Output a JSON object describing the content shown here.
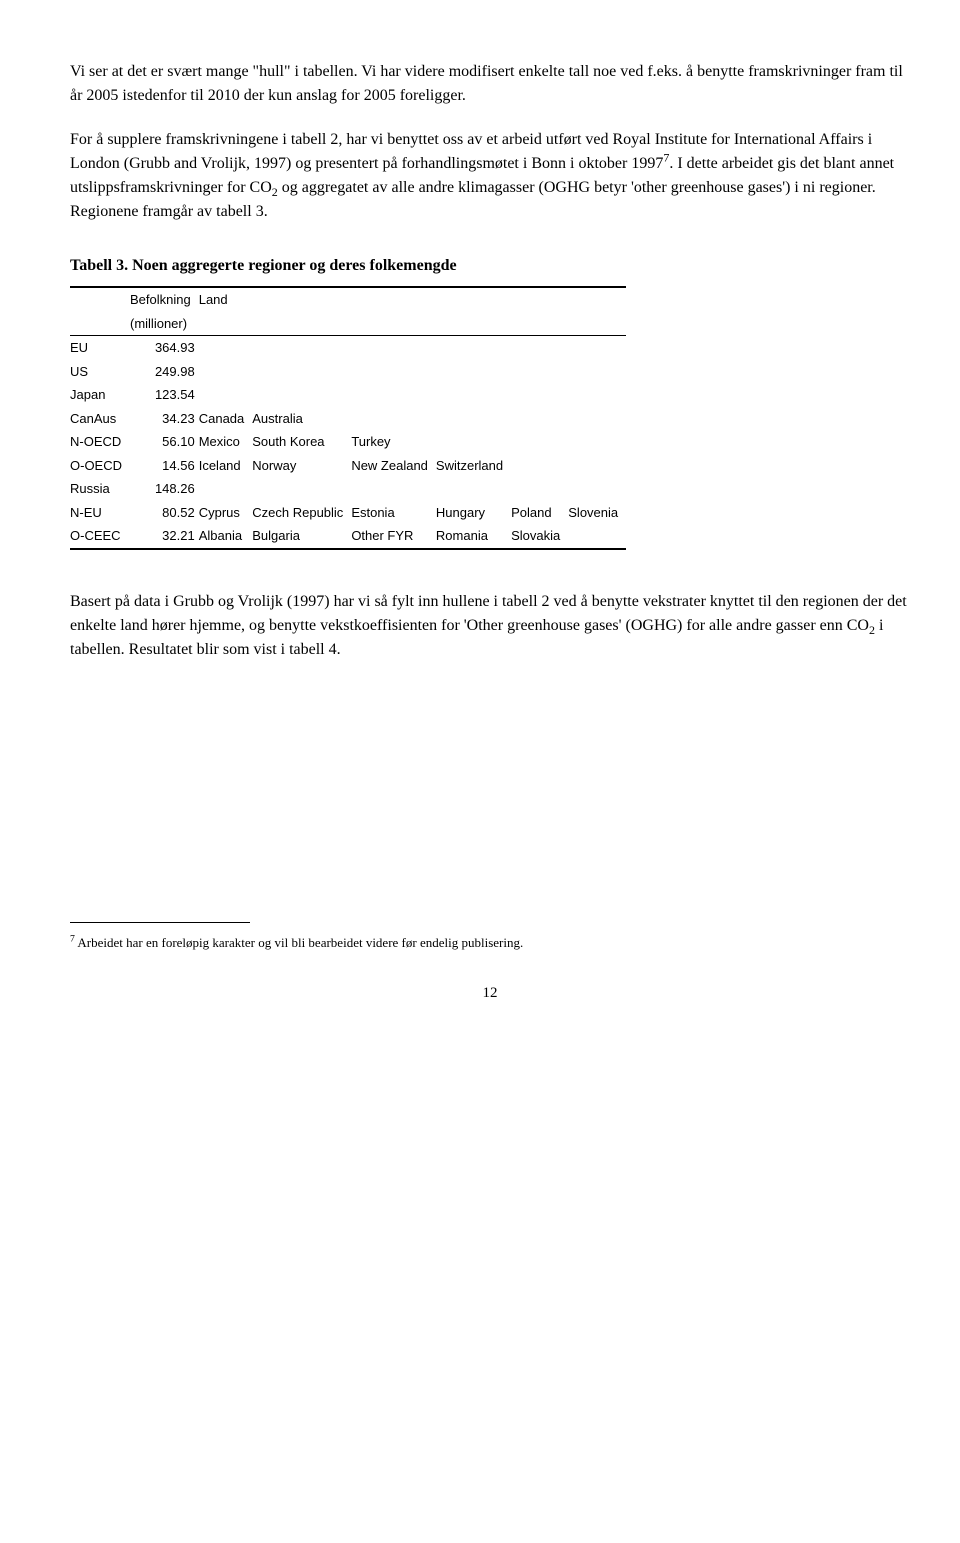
{
  "para1": "Vi ser at det er svært mange \"hull\" i tabellen. Vi har videre modifisert enkelte tall noe ved f.eks. å benytte framskrivninger fram til år 2005 istedenfor til 2010 der kun anslag for 2005 foreligger.",
  "para2_a": "For å supplere framskrivningene i tabell 2, har vi benyttet oss av et arbeid utført ved Royal Institute for International Affairs i London (Grubb and Vrolijk, 1997) og presentert på forhandlingsmøtet i Bonn i oktober 1997",
  "para2_b": ". I dette arbeidet gis det blant annet utslippsframskrivninger for CO",
  "para2_c": " og aggregatet av alle andre klimagasser (OGHG betyr 'other greenhouse gases') i ni regioner. Regionene framgår av tabell 3.",
  "table_title": "Tabell 3. Noen aggregerte regioner og deres folkemengde",
  "header": {
    "col1": "Befolkning",
    "col1b": "(millioner)",
    "col2": "Land"
  },
  "rows": [
    {
      "region": "EU",
      "pop": "364.93",
      "lands": [
        "",
        "",
        "",
        "",
        ""
      ]
    },
    {
      "region": "US",
      "pop": "249.98",
      "lands": [
        "",
        "",
        "",
        "",
        ""
      ]
    },
    {
      "region": "Japan",
      "pop": "123.54",
      "lands": [
        "",
        "",
        "",
        "",
        ""
      ]
    },
    {
      "region": "CanAus",
      "pop": "34.23",
      "lands": [
        "Canada",
        "Australia",
        "",
        "",
        ""
      ]
    },
    {
      "region": "N-OECD",
      "pop": "56.10",
      "lands": [
        "Mexico",
        "South Korea",
        "Turkey",
        "",
        ""
      ]
    },
    {
      "region": "O-OECD",
      "pop": "14.56",
      "lands": [
        "Iceland",
        "Norway",
        "New Zealand",
        "Switzerland",
        ""
      ]
    },
    {
      "region": "Russia",
      "pop": "148.26",
      "lands": [
        "",
        "",
        "",
        "",
        ""
      ]
    },
    {
      "region": "N-EU",
      "pop": "80.52",
      "lands": [
        "Cyprus",
        "Czech Republic",
        "Estonia",
        "Hungary",
        "Poland"
      ],
      "extra": "Slovenia"
    },
    {
      "region": "O-CEEC",
      "pop": "32.21",
      "lands": [
        "Albania",
        "Bulgaria",
        "Other FYR",
        "Romania",
        "Slovakia"
      ]
    }
  ],
  "para3_a": "Basert på data i Grubb og Vrolijk (1997) har vi så fylt inn hullene i tabell 2 ved å benytte vekstrater knyttet til den regionen der det enkelte land hører hjemme, og benytte vekstkoeffisienten for 'Other greenhouse gases' (OGHG) for alle andre gasser enn CO",
  "para3_b": " i tabellen. Resultatet blir som vist i tabell 4.",
  "footnote_num": "7",
  "footnote_text": " Arbeidet har en foreløpig karakter og vil bli bearbeidet videre før endelig publisering.",
  "sup7": "7",
  "sub2": "2",
  "pagenum": "12"
}
